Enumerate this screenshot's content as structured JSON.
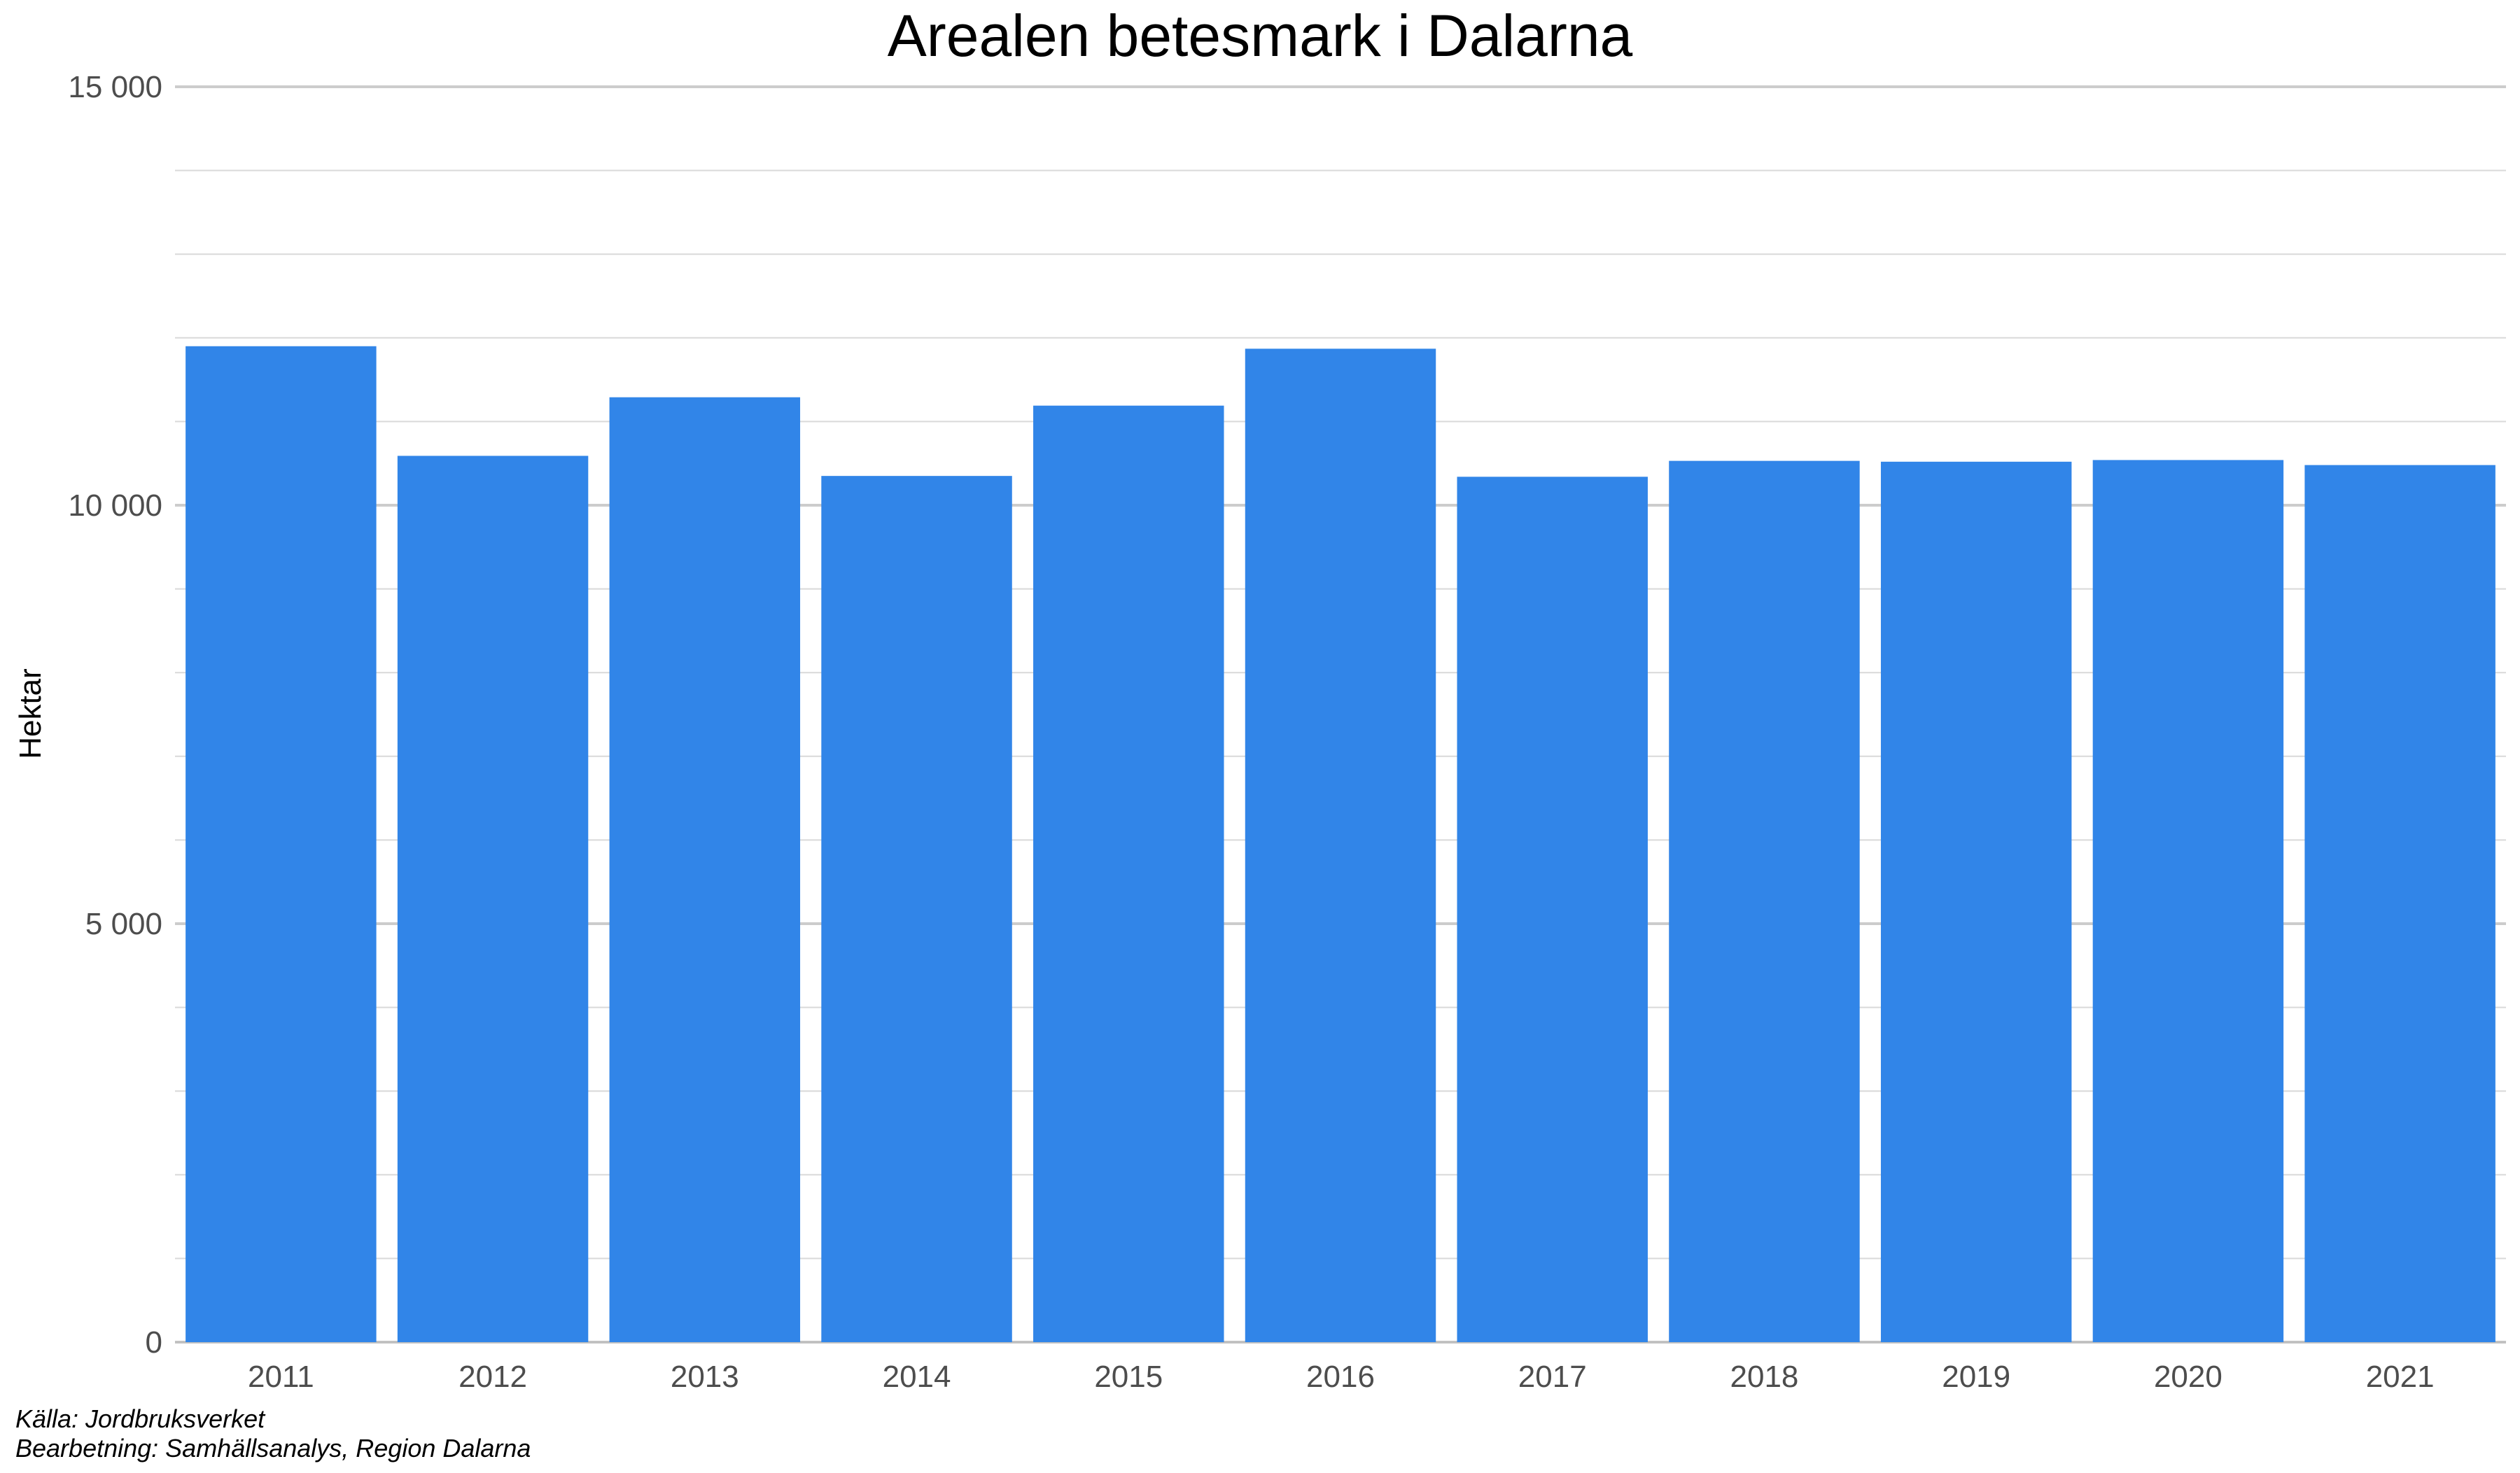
{
  "chart_data": {
    "type": "bar",
    "title": "Arealen betesmark i Dalarna",
    "xlabel": "",
    "ylabel": "Hektar",
    "categories": [
      "2011",
      "2012",
      "2013",
      "2014",
      "2015",
      "2016",
      "2017",
      "2018",
      "2019",
      "2020",
      "2021"
    ],
    "values": [
      11900,
      10590,
      11290,
      10350,
      11190,
      11870,
      10340,
      10530,
      10520,
      10540,
      10480
    ],
    "ylim": [
      0,
      15000
    ],
    "yticks": [
      0,
      5000,
      10000,
      15000
    ],
    "ytick_labels": [
      "0",
      "5 000",
      "10 000",
      "15 000"
    ],
    "grid": true,
    "legend": "none",
    "bar_color": "#3185E8"
  },
  "captions": {
    "source": "Källa: Jordbruksverket",
    "processing": "Bearbetning: Samhällsanalys, Region Dalarna"
  }
}
